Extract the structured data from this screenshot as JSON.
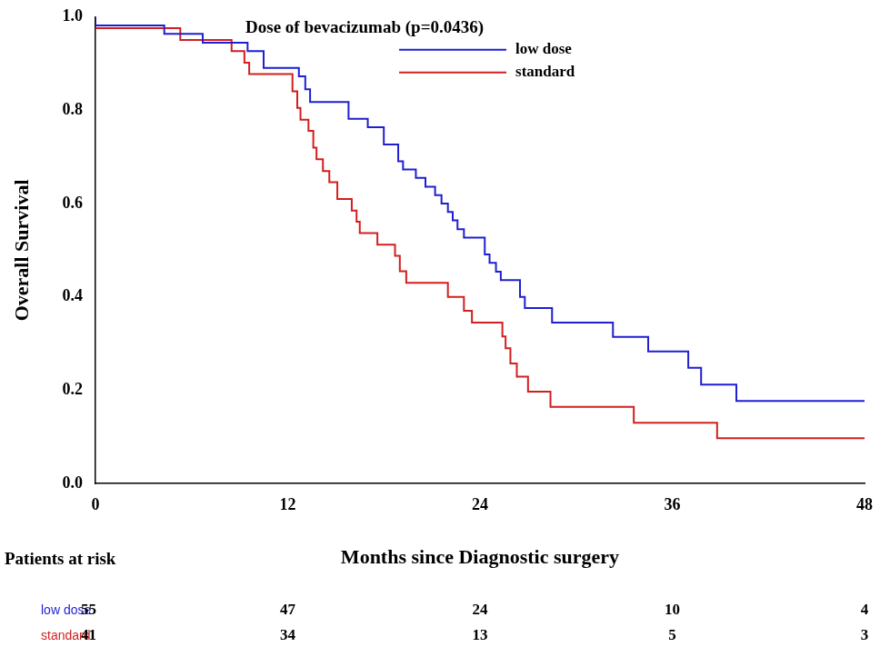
{
  "chart_data": {
    "type": "line",
    "title": "Dose of bevacizumab (p=0.0436)",
    "x_label": "Months since Diagnostic surgery",
    "y_label": "Overall Survival",
    "line_style": "step",
    "legend": "top",
    "grid": false,
    "xlim": [
      0,
      48
    ],
    "xticks": [
      0,
      12,
      24,
      36,
      48
    ],
    "ylim": [
      0,
      1
    ],
    "yticks": [
      {
        "value": 0,
        "label": "0.0"
      },
      {
        "value": 0.2,
        "label": "0.2"
      },
      {
        "value": 0.4,
        "label": "0.4"
      },
      {
        "value": 0.6,
        "label": "0.6"
      },
      {
        "value": 0.8,
        "label": "0.8"
      },
      {
        "value": 1,
        "label": "1.0"
      }
    ],
    "at_risk_label": "Patients at risk",
    "series": [
      {
        "name": "low dose",
        "color": "#1f1fd1",
        "x": [
          0,
          4.3,
          6.7,
          9.5,
          10.5,
          12.7,
          13.1,
          13.4,
          15.8,
          17,
          18,
          18.9,
          19.2,
          20,
          20.6,
          21.2,
          21.6,
          22,
          22.3,
          22.6,
          23,
          24.3,
          24.6,
          25,
          25.3,
          26.5,
          26.8,
          28.5,
          32.3,
          34.5,
          37,
          37.8,
          40,
          44.5,
          48
        ],
        "values": [
          1,
          0.982,
          0.964,
          0.945,
          0.927,
          0.891,
          0.873,
          0.845,
          0.818,
          0.782,
          0.764,
          0.727,
          0.691,
          0.673,
          0.655,
          0.636,
          0.618,
          0.6,
          0.582,
          0.564,
          0.545,
          0.527,
          0.491,
          0.473,
          0.454,
          0.436,
          0.4,
          0.376,
          0.345,
          0.314,
          0.283,
          0.248,
          0.212,
          0.177,
          0.177
        ],
        "at_risk": [
          55,
          47,
          24,
          10,
          4
        ]
      },
      {
        "name": "standard",
        "color": "#d11f1f",
        "x": [
          0,
          5.3,
          8.5,
          9.3,
          9.6,
          12.3,
          12.6,
          12.8,
          13.3,
          13.6,
          13.8,
          14.2,
          14.6,
          15.1,
          16,
          16.3,
          16.5,
          17.6,
          18.7,
          19,
          19.4,
          22,
          23,
          23.5,
          25.4,
          25.6,
          25.9,
          26.3,
          27,
          28.4,
          33.6,
          38.8,
          41.3,
          48
        ],
        "values": [
          1,
          0.976,
          0.951,
          0.927,
          0.902,
          0.878,
          0.841,
          0.805,
          0.78,
          0.756,
          0.72,
          0.695,
          0.67,
          0.646,
          0.61,
          0.585,
          0.561,
          0.537,
          0.512,
          0.488,
          0.455,
          0.43,
          0.4,
          0.37,
          0.345,
          0.315,
          0.29,
          0.257,
          0.229,
          0.197,
          0.164,
          0.13,
          0.097,
          0.097
        ],
        "at_risk": [
          41,
          34,
          13,
          5,
          3
        ]
      }
    ]
  }
}
